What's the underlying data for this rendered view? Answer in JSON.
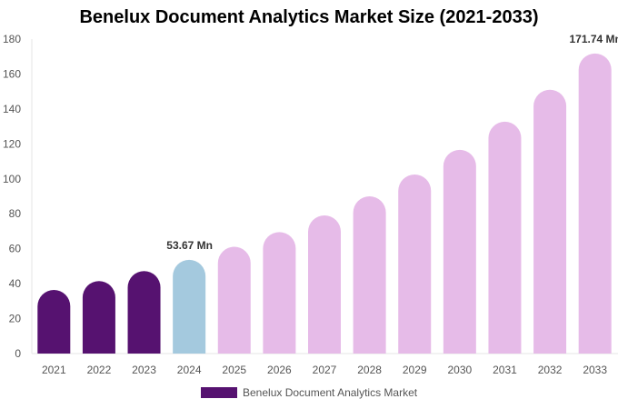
{
  "chart_data": {
    "type": "bar",
    "title": "Benelux Document Analytics Market Size (2021-2033)",
    "categories": [
      "2021",
      "2022",
      "2023",
      "2024",
      "2025",
      "2026",
      "2027",
      "2028",
      "2029",
      "2030",
      "2031",
      "2032",
      "2033"
    ],
    "series": [
      {
        "name": "Benelux Document Analytics Market",
        "values": [
          36.4,
          41.5,
          47.2,
          53.67,
          61.1,
          69.5,
          79.1,
          90.0,
          102.5,
          116.6,
          132.7,
          151.0,
          171.74
        ]
      }
    ],
    "data_labels": [
      {
        "index": 3,
        "text": "53.67 Mn"
      },
      {
        "index": 12,
        "text": "171.74 Mn"
      }
    ],
    "ylim": [
      0,
      180
    ],
    "yticks": [
      0,
      20,
      40,
      60,
      80,
      100,
      120,
      140,
      160,
      180
    ],
    "grid": false,
    "legend": "bottom",
    "colors": {
      "historical": "#561270",
      "current": "#a4c9de",
      "forecast": "#e6bbe8"
    }
  }
}
